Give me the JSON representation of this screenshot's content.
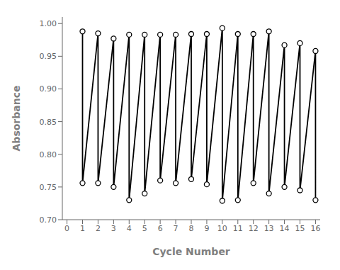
{
  "chart_data": {
    "type": "line",
    "xlabel": "Cycle Number",
    "ylabel": "Absorbance",
    "x": [
      1,
      2,
      3,
      4,
      5,
      6,
      7,
      8,
      9,
      10,
      11,
      12,
      13,
      14,
      15,
      16
    ],
    "series": [
      {
        "values": [
          0.988,
          0.985,
          0.977,
          0.983,
          0.983,
          0.983,
          0.983,
          0.984,
          0.984,
          0.993,
          0.984,
          0.984,
          0.988,
          0.967,
          0.97,
          0.958
        ]
      },
      {
        "values": [
          0.756,
          0.756,
          0.75,
          0.73,
          0.74,
          0.76,
          0.756,
          0.762,
          0.754,
          0.729,
          0.73,
          0.756,
          0.74,
          0.75,
          0.745,
          0.73
        ]
      }
    ],
    "color": "#000000",
    "marker": "circle",
    "xlim": [
      -0.3,
      16.3
    ],
    "ylim": [
      0.7,
      1.01
    ],
    "xticks": [
      0,
      1,
      2,
      3,
      4,
      5,
      6,
      7,
      8,
      9,
      10,
      11,
      12,
      13,
      14,
      15,
      16
    ],
    "yticks": [
      {
        "value": 0.7,
        "label": "0.70"
      },
      0.75,
      {
        "value": 0.8,
        "label": "0.80"
      },
      0.85,
      {
        "value": 0.9,
        "label": "0.90"
      },
      0.95,
      {
        "value": 1.0,
        "label": "1.00"
      }
    ],
    "grid": false
  }
}
